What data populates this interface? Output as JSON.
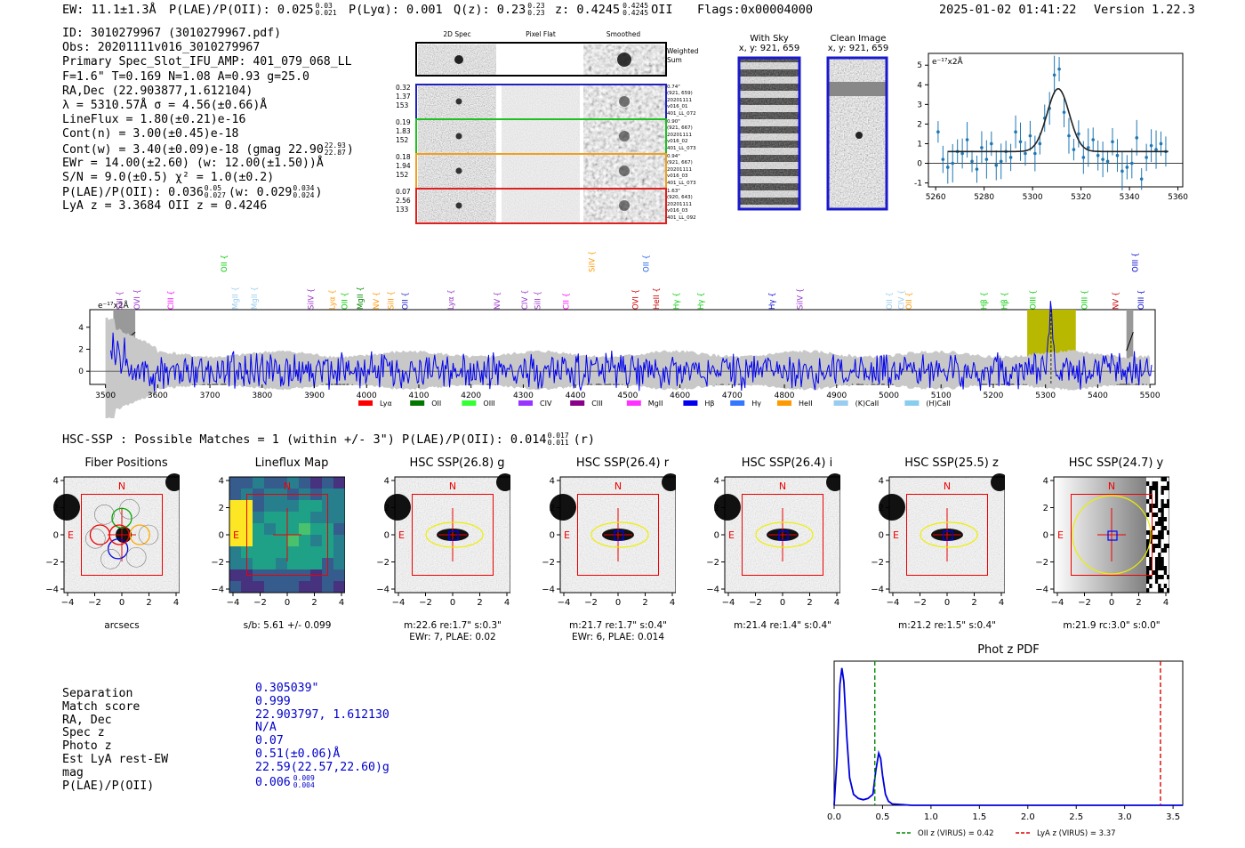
{
  "header": {
    "ew": "EW: 11.1±1.3Å",
    "plae_label": "P(LAE)/P(OII): 0.025",
    "plae_hi": "0.03",
    "plae_lo": "0.021",
    "plya": "P(Lyα): 0.001",
    "qz_label": "Q(z): 0.23",
    "qz_hi": "0.23",
    "qz_lo": "0.23",
    "z_label": "z: 0.4245",
    "z_hi": "0.4245",
    "z_lo": "0.4245",
    "z_line": "OII",
    "flags": "Flags:0x00004000",
    "datetime": "2025-01-02 01:41:22",
    "version": "Version 1.22.3"
  },
  "info": {
    "id": "ID: 3010279967 (3010279967.pdf)",
    "obs": "Obs: 20201111v016_3010279967",
    "primary": "Primary Spec_Slot_IFU_AMP: 401_079_068_LL",
    "fit": "F=1.6\"  T=0.169  N=1.08  A=0.93  g=25.0",
    "radec": "RA,Dec (22.903877,1.612104)",
    "lambda": "λ = 5310.57Å  σ = 4.56(±0.66)Å",
    "lineflux": "LineFlux = 1.80(±0.21)e-16",
    "contn": "Cont(n) = 3.00(±0.45)e-18",
    "contw_label": "Cont(w) = 3.40(±0.09)e-18 (gmag 22.90",
    "contw_hi": "22.93",
    "contw_lo": "22.87",
    "contw_end": ")",
    "ewr": "EWr = 14.00(±2.60) (w: 12.00(±1.50))Å",
    "sn": "S/N = 9.0(±0.5)  χ² = 1.0(±0.2)",
    "plae_label": "P(LAE)/P(OII): 0.036",
    "plae_hi": "0.05",
    "plae_lo": "0.027",
    "plae_w": "(w: 0.029",
    "plae_w_hi": "0.034",
    "plae_w_lo": "0.024",
    "plae_end": ")",
    "lyaz": "LyA z = 3.3684  OII z = 0.4246"
  },
  "cutouts": {
    "col_2d": "2D Spec",
    "col_flat": "Pixel Flat",
    "col_smooth": "Smoothed",
    "weighted": [
      "Weighted",
      "Sum"
    ],
    "rows": [
      {
        "left": [
          "0.32",
          "1.37",
          "153"
        ],
        "right": [
          "0.74\"",
          "(921, 659)",
          "20201111",
          "v016_01",
          "401_LL_072"
        ],
        "color": "#2020c0"
      },
      {
        "left": [
          "0.19",
          "1.83",
          "152"
        ],
        "right": [
          "0.90\"",
          "(921, 667)",
          "20201111",
          "v016_02",
          "401_LL_073"
        ],
        "color": "#20c020"
      },
      {
        "left": [
          "0.18",
          "1.94",
          "152"
        ],
        "right": [
          "0.94\"",
          "(921, 667)",
          "20201111",
          "v016_03",
          "401_LL_073"
        ],
        "color": "#f0a020"
      },
      {
        "left": [
          "0.07",
          "2.56",
          "133"
        ],
        "right": [
          "1.63\"",
          "(920, 643)",
          "20201111",
          "v016_03",
          "401_LL_092"
        ],
        "color": "#e02020"
      }
    ],
    "with_sky": [
      "With Sky",
      "x, y: 921, 659"
    ],
    "clean": [
      "Clean Image",
      "x, y: 921, 659"
    ]
  },
  "zoom_chart": {
    "type": "scatter",
    "unit_label": "e⁻¹⁷x2Å",
    "xlim": [
      5257,
      5362
    ],
    "ylim": [
      -1.2,
      5.6
    ],
    "xticks": [
      5260,
      5280,
      5300,
      5320,
      5340,
      5360
    ],
    "yticks": [
      -1,
      0,
      1,
      2,
      3,
      4,
      5
    ],
    "points": [
      [
        5261,
        1.6
      ],
      [
        5263,
        0.2
      ],
      [
        5265,
        -0.2
      ],
      [
        5267,
        0.0
      ],
      [
        5269,
        0.6
      ],
      [
        5271,
        0.5
      ],
      [
        5273,
        1.2
      ],
      [
        5275,
        0.1
      ],
      [
        5277,
        -0.3
      ],
      [
        5279,
        0.8
      ],
      [
        5281,
        0.2
      ],
      [
        5283,
        1.0
      ],
      [
        5285,
        -0.1
      ],
      [
        5287,
        0.1
      ],
      [
        5289,
        0.6
      ],
      [
        5291,
        0.3
      ],
      [
        5293,
        1.6
      ],
      [
        5295,
        1.1
      ],
      [
        5297,
        0.5
      ],
      [
        5299,
        1.4
      ],
      [
        5301,
        0.5
      ],
      [
        5303,
        1.0
      ],
      [
        5305,
        2.3
      ],
      [
        5307,
        2.8
      ],
      [
        5309,
        4.5
      ],
      [
        5311,
        4.8
      ],
      [
        5313,
        2.6
      ],
      [
        5315,
        1.4
      ],
      [
        5317,
        0.7
      ],
      [
        5319,
        1.5
      ],
      [
        5321,
        0.3
      ],
      [
        5323,
        0.8
      ],
      [
        5325,
        1.2
      ],
      [
        5327,
        0.4
      ],
      [
        5329,
        0.2
      ],
      [
        5331,
        0.1
      ],
      [
        5333,
        1.1
      ],
      [
        5335,
        0.4
      ],
      [
        5337,
        -0.4
      ],
      [
        5339,
        -0.2
      ],
      [
        5341,
        0.0
      ],
      [
        5343,
        1.3
      ],
      [
        5345,
        -0.8
      ],
      [
        5347,
        0.3
      ],
      [
        5349,
        0.9
      ],
      [
        5351,
        0.7
      ],
      [
        5353,
        1.0
      ],
      [
        5355,
        0.6
      ]
    ],
    "fit": {
      "center": 5310.57,
      "sigma": 4.56,
      "baseline": 0.6,
      "amp": 3.2
    }
  },
  "lines": {
    "top": [
      {
        "label": "OII",
        "w": 3727,
        "color": "#00cc00"
      },
      {
        "label": "SiIV",
        "w": 4431,
        "color": "#ff9900"
      },
      {
        "label": "OII",
        "w": 4535,
        "color": "#2060e0"
      },
      {
        "label": "OIII",
        "w": 5472,
        "color": "#0000cc"
      }
    ],
    "low": [
      {
        "label": "SiII",
        "w": 3527,
        "color": "#9933cc"
      },
      {
        "label": "OVI",
        "w": 3560,
        "color": "#9933cc"
      },
      {
        "label": "CIII",
        "w": 3625,
        "color": "#ff00ff"
      },
      {
        "label": "MgII",
        "w": 3748,
        "color": "#99ccee"
      },
      {
        "label": "MgII",
        "w": 3785,
        "color": "#99ccee"
      },
      {
        "label": "SiIV",
        "w": 3893,
        "color": "#9933cc"
      },
      {
        "label": "Lyα",
        "w": 3934,
        "color": "#ff9900"
      },
      {
        "label": "OII",
        "w": 3958,
        "color": "#00cc00"
      },
      {
        "label": "MgII",
        "w": 3988,
        "color": "#008800"
      },
      {
        "label": "NV",
        "w": 4018,
        "color": "#ff9900"
      },
      {
        "label": "SiII",
        "w": 4046,
        "color": "#ff9900"
      },
      {
        "label": "OII",
        "w": 4074,
        "color": "#2020cc"
      },
      {
        "label": "Lyα",
        "w": 4161,
        "color": "#9933cc"
      },
      {
        "label": "NV",
        "w": 4250,
        "color": "#9933cc"
      },
      {
        "label": "CIV",
        "w": 4303,
        "color": "#9933cc"
      },
      {
        "label": "SiII",
        "w": 4327,
        "color": "#9933cc"
      },
      {
        "label": "CII",
        "w": 4382,
        "color": "#ff00ff"
      },
      {
        "label": "OVI",
        "w": 4515,
        "color": "#cc0000"
      },
      {
        "label": "HeII",
        "w": 4555,
        "color": "#cc0000"
      },
      {
        "label": "Hγ",
        "w": 4593,
        "color": "#00cc00"
      },
      {
        "label": "Hγ",
        "w": 4640,
        "color": "#00cc00"
      },
      {
        "label": "Hγ",
        "w": 4776,
        "color": "#0000cc"
      },
      {
        "label": "SiIV",
        "w": 4830,
        "color": "#9933cc"
      },
      {
        "label": "OII",
        "w": 5001,
        "color": "#99ccee"
      },
      {
        "label": "CIV",
        "w": 5024,
        "color": "#99ccee"
      },
      {
        "label": "OII",
        "w": 5038,
        "color": "#ff9900"
      },
      {
        "label": "Hβ",
        "w": 5182,
        "color": "#00cc00"
      },
      {
        "label": "Hβ",
        "w": 5221,
        "color": "#00cc00"
      },
      {
        "label": "OIII",
        "w": 5276,
        "color": "#00cc00"
      },
      {
        "label": "OIII",
        "w": 5375,
        "color": "#00cc00"
      },
      {
        "label": "NV",
        "w": 5434,
        "color": "#cc0000"
      },
      {
        "label": "OIII",
        "w": 5483,
        "color": "#0000cc"
      }
    ]
  },
  "spectrum": {
    "type": "line",
    "unit_label": "e⁻¹⁷x2Å",
    "xlim": [
      3470,
      5510
    ],
    "ylim": [
      -1.2,
      5.6
    ],
    "xticks": [
      3500,
      3600,
      3700,
      3800,
      3900,
      4000,
      4100,
      4200,
      4300,
      4400,
      4500,
      4600,
      4700,
      4800,
      4900,
      5000,
      5100,
      5200,
      5300,
      5400,
      5500
    ],
    "yticks": [
      0,
      2,
      4
    ],
    "highlight": [
      5265,
      5358
    ],
    "peak": 5310.57,
    "bad": [
      [
        3515,
        3557
      ],
      [
        5455,
        5468
      ]
    ],
    "legend": [
      {
        "label": "Lyα",
        "color": "#ff0000"
      },
      {
        "label": "OII",
        "color": "#007700"
      },
      {
        "label": "OIII",
        "color": "#33ff33"
      },
      {
        "label": "CIV",
        "color": "#9933ff"
      },
      {
        "label": "CIII",
        "color": "#880088"
      },
      {
        "label": "MgII",
        "color": "#ff33ff"
      },
      {
        "label": "Hβ",
        "color": "#0000ee"
      },
      {
        "label": "Hγ",
        "color": "#3377ff"
      },
      {
        "label": "HeII",
        "color": "#ff9900"
      },
      {
        "label": "(K)CaII",
        "color": "#99ccee"
      },
      {
        "label": "(H)CaII",
        "color": "#88ccee"
      }
    ]
  },
  "match": {
    "header": "HSC-SSP : Possible Matches = 1 (within +/- 3\")  P(LAE)/P(OII): 0.014",
    "plae_hi": "0.017",
    "plae_lo": "0.011",
    "band": "(r)"
  },
  "image_panels": [
    {
      "title": "Fiber Positions",
      "lines": [
        "arcsecs"
      ]
    },
    {
      "title": "Lineflux Map",
      "lines": [
        "s/b: 5.61 +/- 0.099"
      ]
    },
    {
      "title": "HSC SSP(26.8) g",
      "lines": [
        "m:22.6  re:1.7\"  s:0.3\"",
        "EWr: 7, PLAE: 0.02"
      ]
    },
    {
      "title": "HSC SSP(26.4) r",
      "lines": [
        "m:21.7  re:1.7\"  s:0.4\"",
        "EWr: 6, PLAE: 0.014"
      ]
    },
    {
      "title": "HSC SSP(26.4) i",
      "lines": [
        "m:21.4  re:1.4\"  s:0.4\""
      ]
    },
    {
      "title": "HSC SSP(25.5) z",
      "lines": [
        "m:21.2  re:1.5\"  s:0.4\""
      ]
    },
    {
      "title": "HSC SSP(24.7) y",
      "lines": [
        "m:21.9  rc:3.0\"  s:0.0\""
      ]
    }
  ],
  "image_axes": {
    "ticks": [
      "-4",
      "-2",
      "0",
      "2",
      "4"
    ],
    "north": "N",
    "east": "E"
  },
  "match_table": {
    "labels": [
      "Separation",
      "Match score",
      "RA, Dec",
      "Spec z",
      "Photo z",
      "Est LyA rest-EW",
      "mag",
      "P(LAE)/P(OII)"
    ],
    "values": [
      "0.305039\"",
      "0.999",
      "22.903797, 1.612130",
      "N/A",
      "0.07",
      "0.51(±0.06)Å",
      "22.59(22.57,22.60)g",
      "0.006"
    ],
    "plae_hi": "0.009",
    "plae_lo": "0.004"
  },
  "photz": {
    "type": "line",
    "title": "Phot z PDF",
    "xlim": [
      0,
      3.6
    ],
    "ylim": [
      0,
      1.05
    ],
    "xticks": [
      0.0,
      0.5,
      1.0,
      1.5,
      2.0,
      2.5,
      3.0,
      3.5
    ],
    "curve": [
      [
        0.0,
        0.0
      ],
      [
        0.03,
        0.35
      ],
      [
        0.06,
        0.88
      ],
      [
        0.08,
        1.0
      ],
      [
        0.1,
        0.9
      ],
      [
        0.13,
        0.5
      ],
      [
        0.16,
        0.2
      ],
      [
        0.2,
        0.08
      ],
      [
        0.25,
        0.05
      ],
      [
        0.3,
        0.04
      ],
      [
        0.35,
        0.05
      ],
      [
        0.4,
        0.08
      ],
      [
        0.43,
        0.25
      ],
      [
        0.46,
        0.38
      ],
      [
        0.48,
        0.34
      ],
      [
        0.5,
        0.22
      ],
      [
        0.53,
        0.08
      ],
      [
        0.56,
        0.03
      ],
      [
        0.6,
        0.01
      ],
      [
        0.8,
        0.0
      ],
      [
        3.6,
        0.0
      ]
    ],
    "oii_z": 0.42,
    "lya_z": 3.37,
    "legend": [
      {
        "label": "OII z (VIRUS) = 0.42",
        "color": "#008800"
      },
      {
        "label": "LyA z (VIRUS) = 3.37",
        "color": "#dd0000"
      }
    ]
  }
}
